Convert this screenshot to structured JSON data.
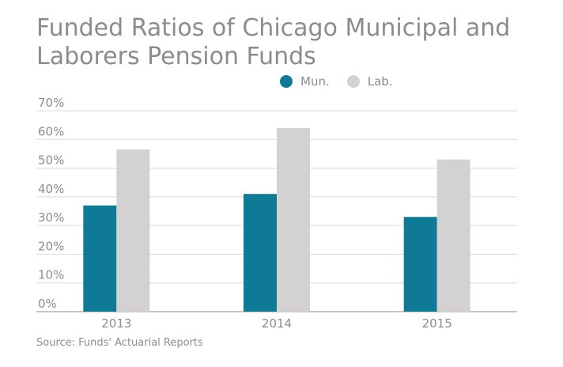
{
  "chart_data": {
    "type": "bar",
    "title_lines": [
      "Funded Ratios of Chicago Municipal and",
      "Laborers Pension Funds"
    ],
    "categories": [
      "2013",
      "2014",
      "2015"
    ],
    "series": [
      {
        "name": "Mun.",
        "values": [
          37,
          41,
          33
        ],
        "color": "#0e7a95"
      },
      {
        "name": "Lab.",
        "values": [
          56.5,
          64,
          53
        ],
        "color": "#d3d1d2"
      }
    ],
    "y_ticks": [
      "0%",
      "10%",
      "20%",
      "30%",
      "40%",
      "50%",
      "60%",
      "70%"
    ],
    "ylim": [
      0,
      70
    ],
    "grid": true,
    "legend_position": "top-right",
    "source": "Source: Funds' Actuarial Reports"
  }
}
